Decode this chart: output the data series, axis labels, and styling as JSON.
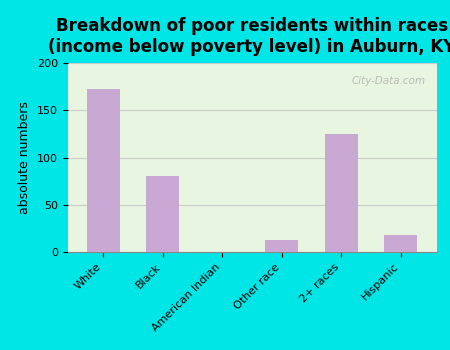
{
  "title": "Breakdown of poor residents within races\n(income below poverty level) in Auburn, KY",
  "categories": [
    "White",
    "Black",
    "American Indian",
    "Other race",
    "2+ races",
    "Hispanic"
  ],
  "values": [
    172,
    80,
    0,
    13,
    125,
    18
  ],
  "bar_color": "#c9a8d4",
  "ylabel": "absolute numbers",
  "ylim": [
    0,
    200
  ],
  "yticks": [
    0,
    50,
    100,
    150,
    200
  ],
  "background_color": "#00e5e5",
  "plot_bg_color": "#e8f5e0",
  "grid_color": "#cccccc",
  "title_fontsize": 12,
  "label_fontsize": 9,
  "tick_fontsize": 8,
  "watermark": "City-Data.com"
}
